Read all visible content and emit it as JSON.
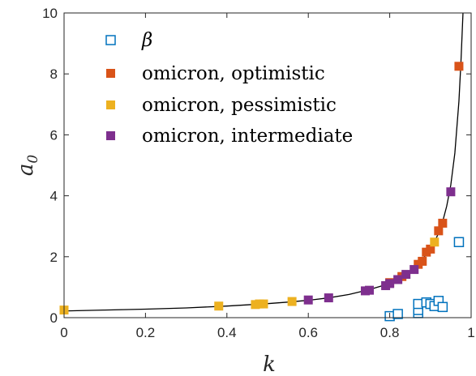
{
  "chart_data": {
    "type": "scatter",
    "xlabel": "k",
    "ylabel_base": "a",
    "ylabel_sub": "0",
    "xlim": [
      0,
      1
    ],
    "ylim": [
      0,
      10
    ],
    "x_ticks": [
      0,
      0.2,
      0.4,
      0.6,
      0.8,
      1
    ],
    "x_tick_labels": [
      "0",
      "0.2",
      "0.4",
      "0.6",
      "0.8",
      "1"
    ],
    "y_ticks": [
      0,
      2,
      4,
      6,
      8,
      10
    ],
    "y_tick_labels": [
      "0",
      "2",
      "4",
      "6",
      "8",
      "10"
    ],
    "grid": false,
    "legend_position": "top-left",
    "series": [
      {
        "name": "β",
        "marker": "open-square",
        "color": "#0072BD",
        "points": [
          [
            0.8,
            0.05
          ],
          [
            0.82,
            0.12
          ],
          [
            0.87,
            0.15
          ],
          [
            0.87,
            0.25
          ],
          [
            0.87,
            0.45
          ],
          [
            0.89,
            0.5
          ],
          [
            0.9,
            0.45
          ],
          [
            0.91,
            0.38
          ],
          [
            0.92,
            0.55
          ],
          [
            0.93,
            0.35
          ],
          [
            0.97,
            2.48
          ]
        ]
      },
      {
        "name": "omicron, optimistic",
        "marker": "filled-square",
        "color": "#D95319",
        "points": [
          [
            0.8,
            1.15
          ],
          [
            0.83,
            1.35
          ],
          [
            0.87,
            1.75
          ],
          [
            0.88,
            1.85
          ],
          [
            0.89,
            2.15
          ],
          [
            0.9,
            2.25
          ],
          [
            0.92,
            2.85
          ],
          [
            0.93,
            3.1
          ],
          [
            0.97,
            8.25
          ]
        ]
      },
      {
        "name": "omicron, pessimistic",
        "marker": "filled-square",
        "color": "#EDB120",
        "points": [
          [
            0.0,
            0.25
          ],
          [
            0.38,
            0.38
          ],
          [
            0.47,
            0.43
          ],
          [
            0.48,
            0.45
          ],
          [
            0.49,
            0.45
          ],
          [
            0.56,
            0.53
          ],
          [
            0.91,
            2.48
          ]
        ]
      },
      {
        "name": "omicron, intermediate",
        "marker": "filled-square",
        "color": "#7E2F8E",
        "points": [
          [
            0.6,
            0.58
          ],
          [
            0.65,
            0.65
          ],
          [
            0.74,
            0.88
          ],
          [
            0.75,
            0.9
          ],
          [
            0.79,
            1.05
          ],
          [
            0.8,
            1.12
          ],
          [
            0.82,
            1.25
          ],
          [
            0.84,
            1.42
          ],
          [
            0.86,
            1.58
          ],
          [
            0.95,
            4.13
          ]
        ]
      }
    ],
    "fit_curve": {
      "color": "#000000",
      "points": [
        [
          0.0,
          0.22
        ],
        [
          0.1,
          0.25
        ],
        [
          0.2,
          0.28
        ],
        [
          0.3,
          0.32
        ],
        [
          0.4,
          0.38
        ],
        [
          0.5,
          0.46
        ],
        [
          0.55,
          0.51
        ],
        [
          0.6,
          0.57
        ],
        [
          0.65,
          0.65
        ],
        [
          0.7,
          0.76
        ],
        [
          0.75,
          0.92
        ],
        [
          0.78,
          1.04
        ],
        [
          0.8,
          1.14
        ],
        [
          0.82,
          1.27
        ],
        [
          0.84,
          1.43
        ],
        [
          0.86,
          1.63
        ],
        [
          0.88,
          1.9
        ],
        [
          0.9,
          2.26
        ],
        [
          0.91,
          2.48
        ],
        [
          0.92,
          2.78
        ],
        [
          0.93,
          3.15
        ],
        [
          0.94,
          3.66
        ],
        [
          0.95,
          4.35
        ],
        [
          0.96,
          5.4
        ],
        [
          0.97,
          7.1
        ],
        [
          0.975,
          8.4
        ],
        [
          0.98,
          10.0
        ]
      ]
    }
  }
}
